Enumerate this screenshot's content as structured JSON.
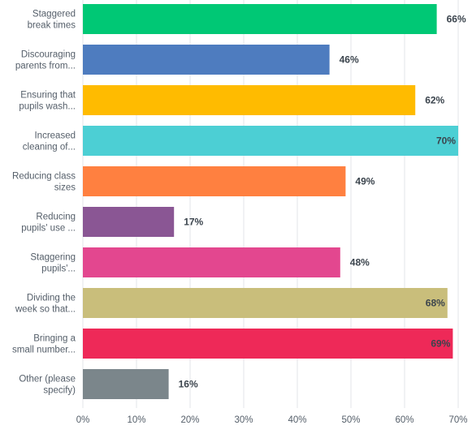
{
  "chart_data": {
    "type": "bar",
    "orientation": "horizontal",
    "categories": [
      [
        "Staggered",
        "break times"
      ],
      [
        "Discouraging",
        "parents from..."
      ],
      [
        "Ensuring that",
        "pupils wash..."
      ],
      [
        "Increased",
        "cleaning of..."
      ],
      [
        "Reducing class",
        "sizes"
      ],
      [
        "Reducing",
        "pupils' use ..."
      ],
      [
        "Staggering",
        "pupils'..."
      ],
      [
        "Dividing the",
        "week so that..."
      ],
      [
        "Bringing a",
        "small number..."
      ],
      [
        "Other (please",
        "specify)"
      ]
    ],
    "values": [
      66,
      46,
      62,
      70,
      49,
      17,
      48,
      68,
      69,
      16
    ],
    "value_labels": [
      "66%",
      "46%",
      "62%",
      "70%",
      "49%",
      "17%",
      "48%",
      "68%",
      "69%",
      "16%"
    ],
    "colors": [
      "#00c875",
      "#4e7cbf",
      "#ffbb00",
      "#4ccfd4",
      "#ff8040",
      "#8a5694",
      "#e3478f",
      "#c9be7b",
      "#ee2958",
      "#7b868b"
    ],
    "xticks": [
      "0%",
      "10%",
      "20%",
      "30%",
      "40%",
      "50%",
      "60%",
      "70%"
    ],
    "xlim": [
      0,
      70
    ],
    "grid": true,
    "legend": "none",
    "title": "",
    "xlabel": "",
    "ylabel": ""
  }
}
